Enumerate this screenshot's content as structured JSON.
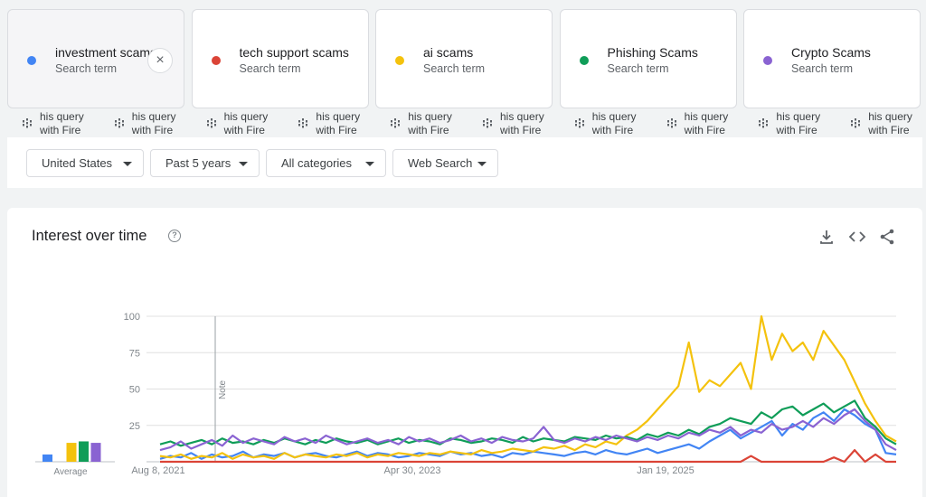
{
  "terms": [
    {
      "name": "investment scams",
      "sub": "Search term",
      "color": "#4285f4"
    },
    {
      "name": "tech support scams",
      "sub": "Search term",
      "color": "#db4437"
    },
    {
      "name": "ai scams",
      "sub": "Search term",
      "color": "#f4c20d"
    },
    {
      "name": "Phishing Scams",
      "sub": "Search term",
      "color": "#0f9d58"
    },
    {
      "name": "Crypto Scams",
      "sub": "Search term",
      "color": "#8a63d2"
    }
  ],
  "remove_icon": "×",
  "hints": [
    {
      "line1": "his query",
      "line2": "with Fire"
    }
  ],
  "filters": {
    "region": "United States",
    "time": "Past 5 years",
    "category": "All categories",
    "property": "Web Search"
  },
  "panel": {
    "title": "Interest over time",
    "help": "?"
  },
  "chart_data": {
    "type": "line",
    "y_ticks": [
      "100",
      "75",
      "50",
      "25"
    ],
    "ylim": [
      0,
      100
    ],
    "x_ticks": [
      "Aug 8, 2021",
      "Apr 30, 2023",
      "Jan 19, 2025"
    ],
    "note_label": "Note",
    "average_label": "Average",
    "averages": [
      {
        "term": "investment scams",
        "value": 5
      },
      {
        "term": "ai scams",
        "value": 13
      },
      {
        "term": "Phishing Scams",
        "value": 14
      },
      {
        "term": "Crypto Scams",
        "value": 13
      }
    ],
    "series": [
      {
        "name": "investment scams",
        "color": "#4285f4",
        "values": [
          2,
          4,
          3,
          6,
          2,
          5,
          3,
          4,
          7,
          3,
          5,
          4,
          6,
          3,
          5,
          6,
          4,
          3,
          5,
          7,
          4,
          6,
          5,
          3,
          4,
          6,
          5,
          4,
          7,
          5,
          6,
          4,
          5,
          3,
          6,
          5,
          7,
          6,
          5,
          4,
          6,
          7,
          5,
          8,
          6,
          5,
          7,
          9,
          6,
          8,
          10,
          12,
          9,
          14,
          18,
          22,
          16,
          20,
          24,
          28,
          18,
          26,
          22,
          30,
          34,
          28,
          36,
          32,
          26,
          22,
          6,
          5
        ]
      },
      {
        "name": "tech support scams",
        "color": "#db4437",
        "values": [
          0,
          0,
          0,
          0,
          0,
          0,
          0,
          0,
          0,
          0,
          0,
          0,
          0,
          0,
          0,
          0,
          0,
          0,
          0,
          0,
          0,
          0,
          0,
          0,
          0,
          0,
          0,
          0,
          0,
          0,
          0,
          0,
          0,
          0,
          0,
          0,
          0,
          0,
          0,
          0,
          0,
          0,
          0,
          0,
          0,
          0,
          0,
          0,
          0,
          0,
          0,
          0,
          0,
          0,
          0,
          0,
          0,
          4,
          0,
          0,
          0,
          0,
          0,
          0,
          0,
          3,
          0,
          8,
          0,
          5,
          0,
          0
        ]
      },
      {
        "name": "ai scams",
        "color": "#f4c20d",
        "values": [
          4,
          3,
          5,
          2,
          4,
          3,
          6,
          2,
          5,
          3,
          4,
          2,
          6,
          3,
          5,
          4,
          3,
          5,
          4,
          6,
          3,
          5,
          4,
          6,
          5,
          4,
          6,
          5,
          7,
          6,
          5,
          8,
          6,
          7,
          9,
          8,
          7,
          10,
          9,
          11,
          8,
          12,
          10,
          14,
          12,
          18,
          22,
          28,
          36,
          44,
          52,
          82,
          48,
          56,
          52,
          60,
          68,
          50,
          100,
          70,
          88,
          76,
          82,
          70,
          90,
          80,
          70,
          55,
          40,
          28,
          18,
          14
        ]
      },
      {
        "name": "Phishing Scams",
        "color": "#0f9d58",
        "values": [
          12,
          14,
          11,
          13,
          15,
          12,
          16,
          13,
          14,
          12,
          15,
          13,
          16,
          14,
          12,
          15,
          13,
          16,
          14,
          13,
          15,
          12,
          14,
          16,
          13,
          15,
          14,
          12,
          16,
          15,
          13,
          14,
          16,
          15,
          13,
          17,
          14,
          16,
          15,
          14,
          17,
          16,
          15,
          18,
          16,
          17,
          15,
          19,
          17,
          20,
          18,
          22,
          19,
          24,
          26,
          30,
          28,
          26,
          34,
          30,
          36,
          38,
          32,
          36,
          40,
          34,
          38,
          42,
          30,
          24,
          16,
          12
        ]
      },
      {
        "name": "Crypto Scams",
        "color": "#8a63d2",
        "values": [
          8,
          10,
          14,
          9,
          12,
          15,
          11,
          18,
          13,
          16,
          14,
          12,
          17,
          14,
          16,
          13,
          18,
          15,
          12,
          14,
          16,
          13,
          15,
          12,
          17,
          14,
          16,
          13,
          15,
          18,
          14,
          16,
          13,
          17,
          15,
          14,
          16,
          24,
          15,
          13,
          16,
          14,
          17,
          15,
          18,
          16,
          14,
          17,
          15,
          18,
          16,
          20,
          18,
          22,
          20,
          24,
          18,
          22,
          20,
          26,
          22,
          24,
          28,
          24,
          30,
          26,
          32,
          36,
          28,
          22,
          12,
          8
        ]
      }
    ]
  }
}
